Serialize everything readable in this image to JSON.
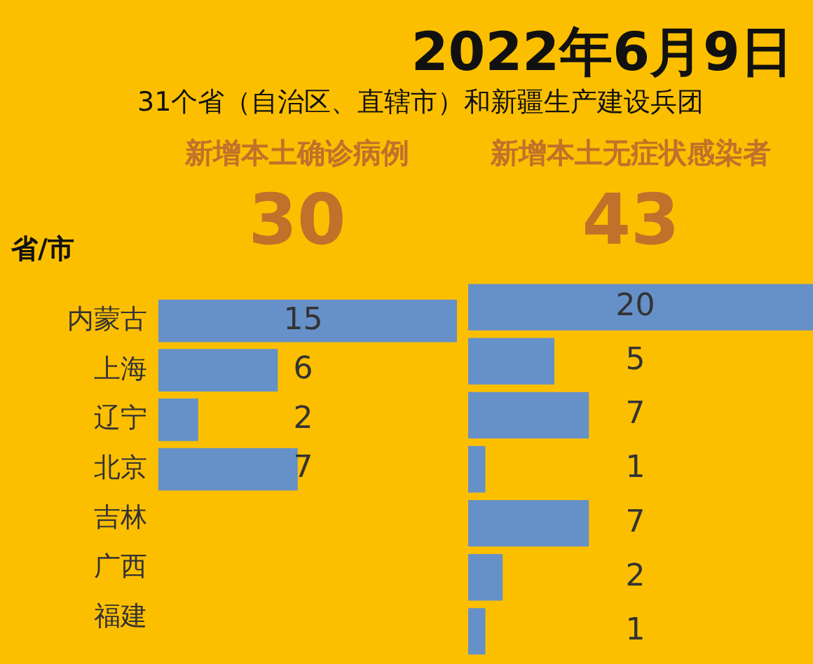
{
  "chart_data": [
    {
      "type": "bar",
      "orientation": "horizontal",
      "title": "新增本土确诊病例",
      "subtitle": "30",
      "ylabel": "省/市",
      "annotations": [
        "2022年6月9日",
        "31个省（自治区、直辖市）和新疆生产建设兵团"
      ],
      "categories": [
        "内蒙古",
        "上海",
        "辽宁",
        "北京",
        "吉林",
        "广西",
        "福建"
      ],
      "values": [
        15,
        6,
        2,
        7,
        null,
        null,
        null
      ],
      "color": "#6690c8",
      "data_labels": true,
      "tick_labels": "y"
    },
    {
      "type": "bar",
      "orientation": "horizontal",
      "title": "新增本土无症状感染者",
      "subtitle": "43",
      "values": [
        20,
        5,
        7,
        1,
        7,
        2,
        1
      ],
      "color": "#6690c8",
      "data_labels": true,
      "tick_labels": false
    }
  ]
}
